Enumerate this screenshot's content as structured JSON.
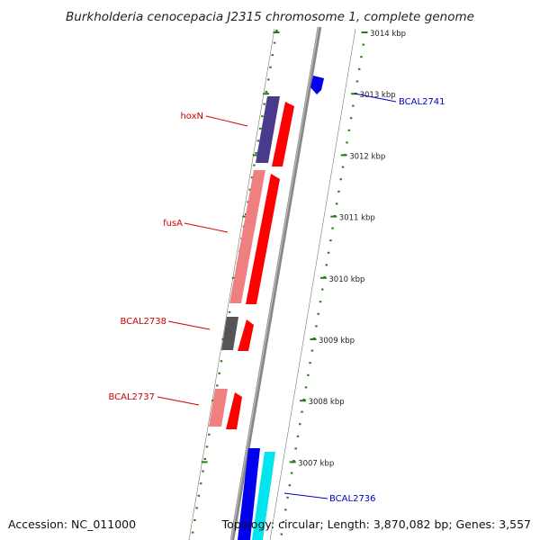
{
  "title": "Burkholderia cenocepacia J2315 chromosome 1, complete genome",
  "ticks": [
    {
      "label": "3014 kbp",
      "kbp": 3014
    },
    {
      "label": "3013 kbp",
      "kbp": 3013
    },
    {
      "label": "3012 kbp",
      "kbp": 3012
    },
    {
      "label": "3011 kbp",
      "kbp": 3011
    },
    {
      "label": "3010 kbp",
      "kbp": 3010
    },
    {
      "label": "3009 kbp",
      "kbp": 3009
    },
    {
      "label": "3008 kbp",
      "kbp": 3008
    },
    {
      "label": "3007 kbp",
      "kbp": 3007
    }
  ],
  "genes": [
    {
      "name": "BCAL2741",
      "strand": "forward",
      "color": "#0000ee",
      "label_color": "#0000cc"
    },
    {
      "name": "hoxN",
      "strand": "reverse",
      "color": "#ff0000",
      "label_color": "#cc0000"
    },
    {
      "name": "fusA",
      "strand": "reverse",
      "color": "#ff0000",
      "label_color": "#cc0000"
    },
    {
      "name": "BCAL2738",
      "strand": "reverse",
      "color": "#ff0000",
      "label_color": "#cc0000"
    },
    {
      "name": "BCAL2737",
      "strand": "reverse",
      "color": "#ff0000",
      "label_color": "#cc0000"
    },
    {
      "name": "BCAL2736",
      "strand": "forward",
      "color": "#0000ee",
      "label_color": "#0000cc"
    }
  ],
  "cog_colors": {
    "hoxN": "#4a3a8c",
    "fusA": "#f08080",
    "BCAL2738": "#555555",
    "BCAL2737": "#f08080",
    "BCAL2736": "#00e5ee"
  },
  "colors": {
    "backbone": "#888888",
    "ticks": "#2a7a1a",
    "track_outline": "#777777"
  },
  "footer": {
    "accession": "Accession: NC_011000",
    "topology": "Topology: circular; Length: 3,870,082 bp; Genes: 3,557"
  }
}
